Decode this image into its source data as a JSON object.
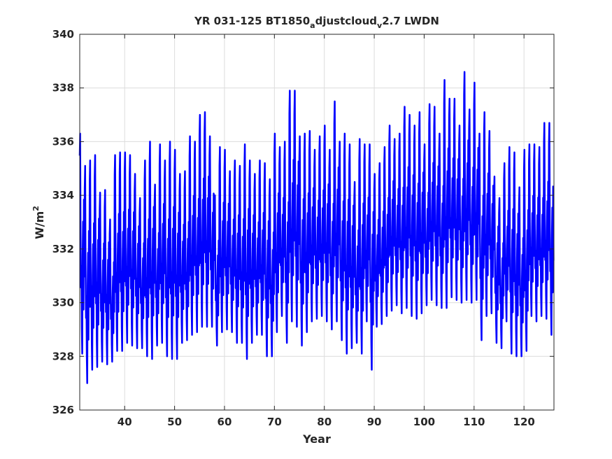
{
  "chart_data": {
    "type": "line",
    "title": {
      "prefix": "YR 031-125 BT1850",
      "sub1": "a",
      "mid": "djustcloud",
      "sub2": "v",
      "suffix": "2.7 LWDN"
    },
    "xlabel": "Year",
    "ylabel": {
      "base": "W/m",
      "sup": "2"
    },
    "xlim": [
      31,
      126
    ],
    "ylim": [
      326,
      340
    ],
    "xticks": [
      40,
      50,
      60,
      70,
      80,
      90,
      100,
      110,
      120
    ],
    "yticks": [
      326,
      328,
      330,
      332,
      334,
      336,
      338,
      340
    ],
    "grid": true,
    "series": [
      {
        "color": "#0000ff",
        "description": "monthly values, annual cycle (approximate envelope per year)",
        "years": [
          31,
          32,
          33,
          34,
          35,
          36,
          37,
          38,
          39,
          40,
          41,
          42,
          43,
          44,
          45,
          46,
          47,
          48,
          49,
          50,
          51,
          52,
          53,
          54,
          55,
          56,
          57,
          58,
          59,
          60,
          61,
          62,
          63,
          64,
          65,
          66,
          67,
          68,
          69,
          70,
          71,
          72,
          73,
          74,
          75,
          76,
          77,
          78,
          79,
          80,
          81,
          82,
          83,
          84,
          85,
          86,
          87,
          88,
          89,
          90,
          91,
          92,
          93,
          94,
          95,
          96,
          97,
          98,
          99,
          100,
          101,
          102,
          103,
          104,
          105,
          106,
          107,
          108,
          109,
          110,
          111,
          112,
          113,
          114,
          115,
          116,
          117,
          118,
          119,
          120,
          121,
          122,
          123,
          124,
          125
        ],
        "annual_max": [
          336.3,
          335.1,
          335.3,
          335.5,
          334.1,
          334.2,
          333.1,
          335.5,
          335.6,
          335.6,
          335.5,
          334.8,
          333.9,
          335.3,
          336.0,
          334.4,
          335.9,
          335.3,
          336.0,
          335.7,
          334.8,
          334.9,
          336.2,
          336.0,
          337.0,
          337.1,
          336.2,
          334.0,
          335.8,
          335.7,
          334.9,
          335.3,
          335.1,
          335.9,
          335.3,
          334.8,
          335.3,
          335.2,
          334.6,
          336.3,
          335.8,
          336.0,
          337.9,
          337.9,
          336.2,
          336.3,
          336.4,
          335.7,
          336.2,
          336.6,
          335.7,
          337.5,
          336.0,
          336.3,
          335.9,
          334.5,
          336.1,
          335.9,
          335.9,
          334.8,
          335.2,
          335.8,
          336.6,
          336.1,
          336.3,
          337.3,
          337.0,
          336.6,
          337.1,
          335.9,
          337.4,
          337.3,
          336.3,
          338.3,
          337.6,
          337.6,
          336.6,
          338.6,
          337.2,
          338.2,
          336.3,
          337.1,
          336.4,
          334.7,
          333.9,
          335.2,
          335.8,
          335.6,
          334.3,
          335.7,
          335.9,
          335.9,
          335.8,
          336.7,
          336.7
        ],
        "annual_min": [
          328.1,
          327.0,
          327.5,
          327.6,
          327.8,
          327.7,
          327.8,
          328.2,
          328.2,
          328.5,
          328.4,
          328.3,
          328.3,
          328.0,
          327.9,
          328.4,
          328.5,
          328.0,
          327.9,
          327.9,
          328.5,
          328.6,
          328.8,
          328.9,
          329.1,
          329.1,
          329.1,
          328.4,
          328.9,
          329.0,
          328.9,
          328.5,
          328.5,
          327.9,
          328.5,
          328.8,
          328.8,
          328.0,
          328.0,
          328.9,
          329.5,
          328.5,
          329.3,
          329.1,
          328.4,
          328.9,
          329.3,
          329.4,
          329.5,
          329.3,
          329.0,
          329.3,
          328.6,
          328.1,
          328.3,
          328.5,
          328.1,
          329.3,
          327.5,
          329.1,
          329.2,
          329.5,
          329.7,
          329.9,
          329.6,
          329.8,
          329.5,
          329.4,
          329.6,
          329.9,
          330.1,
          329.9,
          329.8,
          329.8,
          330.2,
          330.1,
          330.0,
          330.1,
          330.0,
          330.1,
          328.6,
          329.5,
          329.6,
          328.5,
          328.3,
          329.3,
          328.1,
          328.0,
          328.0,
          328.2,
          329.5,
          329.3,
          329.5,
          329.4,
          328.8
        ]
      }
    ]
  }
}
